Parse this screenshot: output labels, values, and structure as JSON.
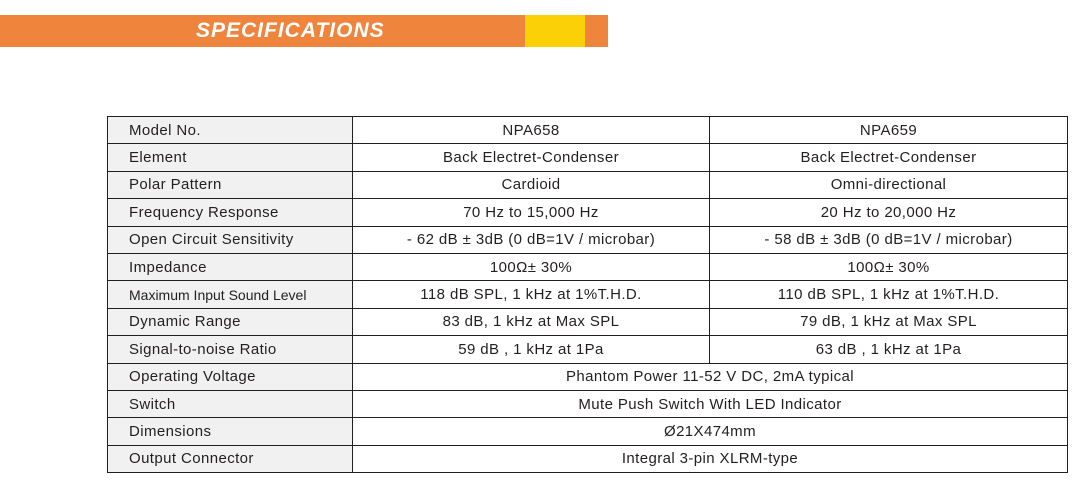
{
  "banner": {
    "title": "SPECIFICATIONS",
    "colors": {
      "bar": "#ef843c",
      "accent": "#fcd006",
      "text": "#ffffff"
    }
  },
  "table": {
    "colors": {
      "label_bg": "#f1f1f1",
      "border": "#231f20",
      "text": "#231f20"
    },
    "rows": [
      {
        "label": "Model No.",
        "npa658": "NPA658",
        "npa659": "NPA659"
      },
      {
        "label": "Element",
        "npa658": "Back Electret-Condenser",
        "npa659": "Back Electret-Condenser"
      },
      {
        "label": "Polar Pattern",
        "npa658": "Cardioid",
        "npa659": "Omni-directional"
      },
      {
        "label": "Frequency Response",
        "npa658": "70 Hz to 15,000 Hz",
        "npa659": "20 Hz to 20,000 Hz"
      },
      {
        "label": "Open Circuit Sensitivity",
        "npa658": "- 62 dB ± 3dB (0 dB=1V / microbar)",
        "npa659": "- 58 dB ± 3dB (0 dB=1V / microbar)"
      },
      {
        "label": "Impedance",
        "npa658": "100Ω± 30%",
        "npa659": "100Ω± 30%"
      },
      {
        "label": "Maximum Input Sound Level",
        "npa658": "118 dB SPL, 1 kHz at 1%T.H.D.",
        "npa659": "110 dB SPL, 1 kHz at 1%T.H.D."
      },
      {
        "label": "Dynamic Range",
        "npa658": "83 dB, 1 kHz at Max SPL",
        "npa659": "79 dB, 1 kHz at Max SPL"
      },
      {
        "label": "Signal-to-noise Ratio",
        "npa658": "59 dB , 1 kHz at 1Pa",
        "npa659": "63 dB , 1 kHz at 1Pa"
      },
      {
        "label": "Operating Voltage",
        "shared": "Phantom Power 11-52 V DC, 2mA typical"
      },
      {
        "label": "Switch",
        "shared": "Mute Push Switch With LED Indicator"
      },
      {
        "label": "Dimensions",
        "shared": "Ø21X474mm"
      },
      {
        "label": "Output Connector",
        "shared": "Integral 3-pin XLRM-type"
      }
    ]
  }
}
